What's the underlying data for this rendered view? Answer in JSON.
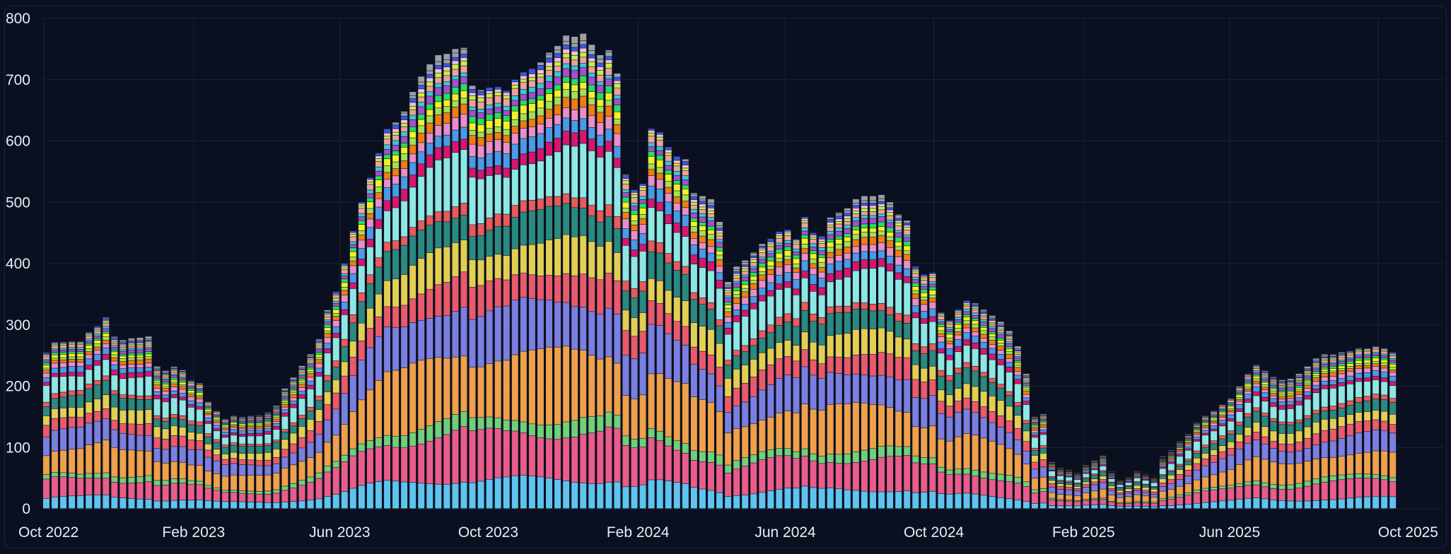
{
  "chart_data": {
    "type": "bar",
    "stacked": true,
    "grid": true,
    "xlim": [
      "2022-10-01",
      "2025-11-24"
    ],
    "ylim": [
      0,
      800
    ],
    "y_ticks": [
      "0",
      "100",
      "200",
      "300",
      "400",
      "500",
      "600",
      "700",
      "800"
    ],
    "x_ticks": [
      {
        "label": "Oct 2022",
        "date": "2022-10-01"
      },
      {
        "label": "Feb 2023",
        "date": "2023-02-01"
      },
      {
        "label": "Jun 2023",
        "date": "2023-06-01"
      },
      {
        "label": "Oct 2023",
        "date": "2023-10-01"
      },
      {
        "label": "Feb 2024",
        "date": "2024-02-01"
      },
      {
        "label": "Jun 2024",
        "date": "2024-06-01"
      },
      {
        "label": "Oct 2024",
        "date": "2024-10-01"
      },
      {
        "label": "Feb 2025",
        "date": "2025-02-01"
      },
      {
        "label": "Jun 2025",
        "date": "2025-06-01"
      },
      {
        "label": "Oct 2025",
        "date": "2025-10-01"
      }
    ],
    "first_week": "2022-10-03",
    "week_step_days": 7,
    "totals": [
      255,
      272,
      272,
      273,
      273,
      288,
      298,
      312,
      281,
      275,
      278,
      279,
      281,
      232,
      225,
      232,
      226,
      210,
      205,
      175,
      160,
      147,
      152,
      150,
      152,
      153,
      157,
      168,
      196,
      214,
      233,
      252,
      277,
      324,
      354,
      400,
      453,
      500,
      540,
      580,
      620,
      630,
      648,
      680,
      705,
      725,
      740,
      742,
      750,
      752,
      690,
      683,
      687,
      688,
      682,
      700,
      712,
      718,
      728,
      744,
      755,
      772,
      770,
      775,
      757,
      740,
      748,
      710,
      545,
      520,
      530,
      620,
      614,
      590,
      575,
      570,
      515,
      510,
      505,
      468,
      370,
      395,
      405,
      418,
      432,
      440,
      452,
      455,
      440,
      476,
      450,
      445,
      475,
      483,
      490,
      505,
      510,
      510,
      512,
      500,
      480,
      470,
      395,
      382,
      385,
      320,
      307,
      325,
      340,
      335,
      325,
      315,
      305,
      290,
      265,
      220,
      150,
      155,
      78,
      68,
      65,
      60,
      72,
      80,
      88,
      62,
      50,
      55,
      65,
      60,
      55,
      85,
      95,
      110,
      122,
      140,
      152,
      160,
      170,
      180,
      200,
      220,
      235,
      225,
      215,
      210,
      212,
      220,
      232,
      245,
      252,
      252,
      255,
      258,
      262,
      262,
      265,
      262,
      255
    ],
    "segment_shares": [
      0.065,
      0.105,
      0.03,
      0.145,
      0.11,
      0.065,
      0.07,
      0.065,
      0.025,
      0.1,
      0.025,
      0.03,
      0.025,
      0.02,
      0.015,
      0.017,
      0.013,
      0.015,
      0.01,
      0.015,
      0.009,
      0.008,
      0.009,
      0.009
    ],
    "series_colors": [
      "#5ec4ef",
      "#ea5c8a",
      "#6fd07b",
      "#efa04a",
      "#7b7fe0",
      "#e95a6c",
      "#e2cf52",
      "#2a8a80",
      "#e95a5a",
      "#8ee7e2",
      "#d8166e",
      "#4a9ae8",
      "#e98ec8",
      "#f07c14",
      "#a2e05a",
      "#f2f028",
      "#24e060",
      "#a64ecc",
      "#3ac9d0",
      "#f0a0a0",
      "#c8f040",
      "#f6c0d8",
      "#3a58e0",
      "#9aa0a8"
    ]
  }
}
